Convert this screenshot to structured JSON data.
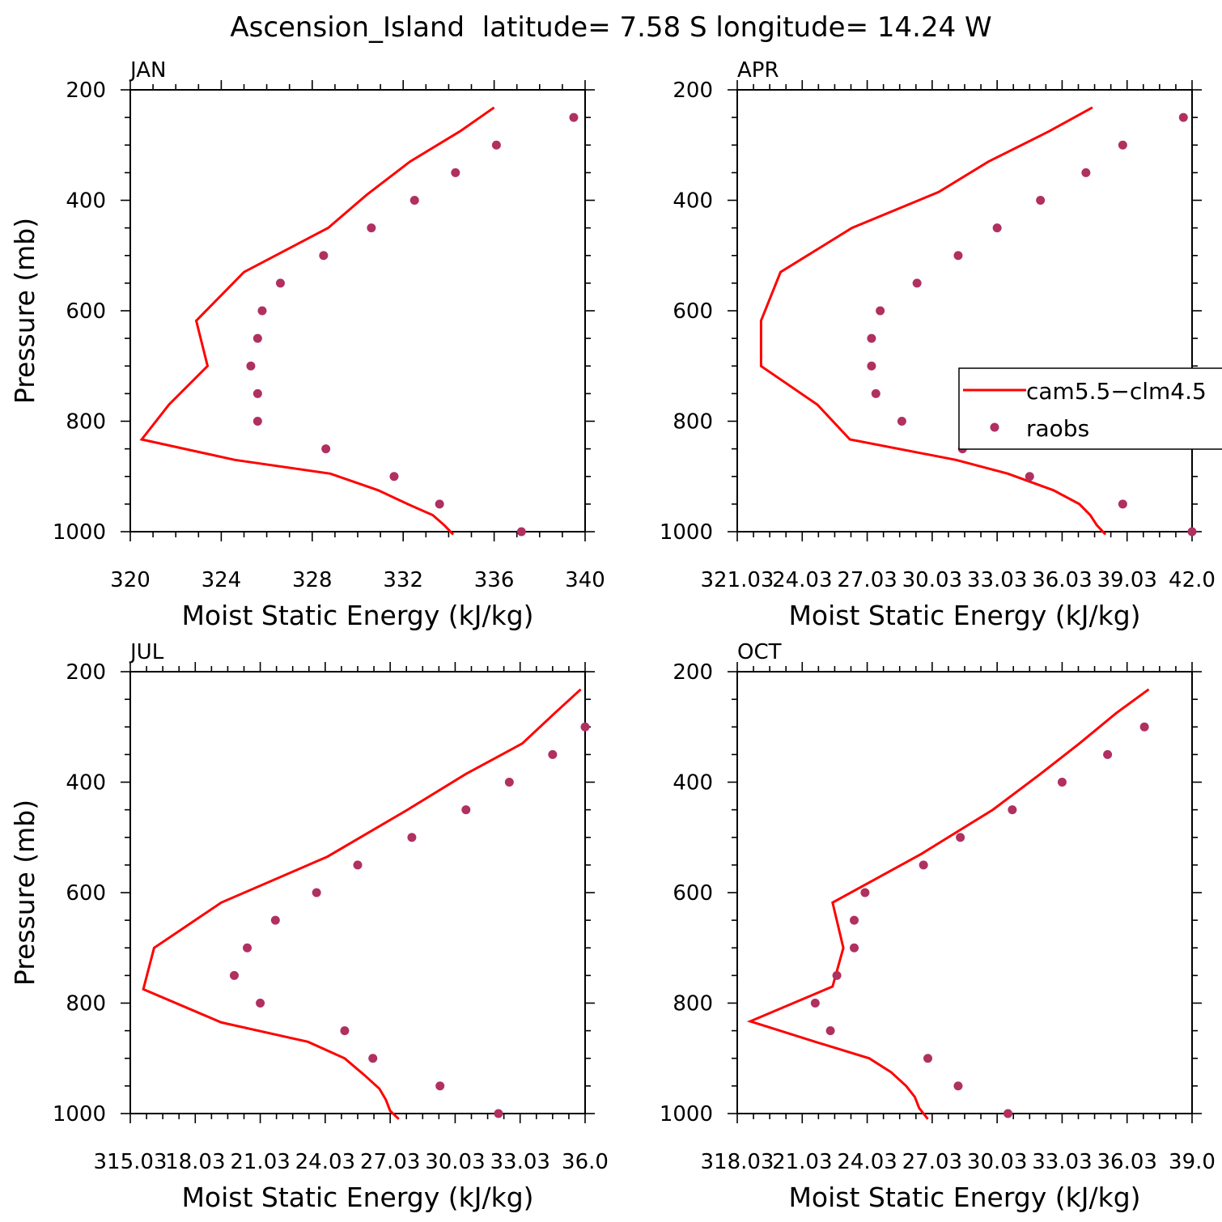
{
  "page": {
    "title": "Ascension_Island  latitude= 7.58 S longitude= 14.24 W"
  },
  "colors": {
    "model_line": "#ff0000",
    "obs_marker": "#b03060"
  },
  "legend": {
    "model_label": "cam5.5−clm4.5",
    "obs_label": "raobs",
    "position": "right-middle of APR panel"
  },
  "chart_data": [
    {
      "type": "line",
      "panel": "JAN",
      "xlabel": "Moist Static Energy (kJ/kg)",
      "ylabel": "Pressure (mb)",
      "xlim": [
        320,
        340
      ],
      "ylim": [
        1000,
        200
      ],
      "xticks": [
        320,
        324,
        328,
        332,
        336,
        340
      ],
      "xtick_labels": [
        "320",
        "324",
        "328",
        "332",
        "336",
        "340"
      ],
      "yticks": [
        200,
        400,
        600,
        800,
        1000
      ],
      "ytick_labels": [
        "200",
        "400",
        "600",
        "800",
        "1000"
      ],
      "series": [
        {
          "kind": "line",
          "x": [
            336.0,
            334.5,
            332.3,
            330.4,
            328.7,
            325.0,
            322.9,
            323.4,
            321.7,
            320.5,
            324.6,
            328.8,
            330.9,
            332.2,
            333.3,
            333.8,
            334.2
          ],
          "y": [
            232,
            275,
            330,
            390,
            450,
            530,
            618,
            700,
            770,
            833,
            870,
            895,
            925,
            950,
            970,
            988,
            1005
          ]
        },
        {
          "kind": "scatter",
          "x": [
            339.5,
            336.1,
            334.3,
            332.5,
            330.6,
            328.5,
            326.6,
            325.8,
            325.6,
            325.3,
            325.6,
            325.6,
            328.6,
            331.6,
            333.6,
            337.2
          ],
          "y": [
            250,
            300,
            350,
            400,
            450,
            500,
            550,
            600,
            650,
            700,
            750,
            800,
            850,
            900,
            950,
            1000
          ]
        }
      ]
    },
    {
      "type": "line",
      "panel": "APR",
      "xlabel": "Moist Static Energy (kJ/kg)",
      "ylabel": "",
      "xlim": [
        321.0,
        342.0
      ],
      "ylim": [
        1000,
        200
      ],
      "xticks": [
        321,
        324,
        327,
        330,
        333,
        336,
        339,
        342
      ],
      "xtick_labels": [
        "321.03",
        "24.03",
        "27.03",
        "30.03",
        "33.03",
        "36.03",
        "39.03",
        "42.0"
      ],
      "yticks": [
        200,
        400,
        600,
        800,
        1000
      ],
      "ytick_labels": [
        "200",
        "400",
        "600",
        "800",
        "1000"
      ],
      "series": [
        {
          "kind": "line",
          "x": [
            337.4,
            335.4,
            332.6,
            330.3,
            326.3,
            323.0,
            322.1,
            322.1,
            324.7,
            326.2,
            331.1,
            333.5,
            335.6,
            336.8,
            337.3,
            337.6,
            338.0
          ],
          "y": [
            232,
            275,
            330,
            385,
            450,
            530,
            618,
            700,
            770,
            833,
            870,
            895,
            925,
            950,
            970,
            988,
            1005
          ]
        },
        {
          "kind": "scatter",
          "x": [
            341.6,
            338.8,
            337.1,
            335.0,
            333.0,
            331.2,
            329.3,
            327.6,
            327.2,
            327.2,
            327.4,
            328.6,
            331.4,
            334.5,
            338.8,
            342.0
          ],
          "y": [
            250,
            300,
            350,
            400,
            450,
            500,
            550,
            600,
            650,
            700,
            750,
            800,
            850,
            900,
            950,
            1000
          ]
        }
      ]
    },
    {
      "type": "line",
      "panel": "JUL",
      "xlabel": "Moist Static Energy (kJ/kg)",
      "ylabel": "Pressure (mb)",
      "xlim": [
        315.0,
        336.0
      ],
      "ylim": [
        1000,
        200
      ],
      "xticks": [
        315,
        318,
        321,
        324,
        327,
        330,
        333,
        336
      ],
      "xtick_labels": [
        "315.03",
        "18.03",
        "21.03",
        "24.03",
        "27.03",
        "30.03",
        "33.03",
        "36.0"
      ],
      "yticks": [
        200,
        400,
        600,
        800,
        1000
      ],
      "ytick_labels": [
        "200",
        "400",
        "600",
        "800",
        "1000"
      ],
      "series": [
        {
          "kind": "line",
          "x": [
            335.8,
            334.6,
            333.1,
            330.5,
            327.8,
            324.1,
            319.2,
            316.1,
            315.6,
            319.2,
            323.2,
            324.9,
            325.8,
            326.5,
            326.8,
            327.0,
            327.4
          ],
          "y": [
            232,
            275,
            330,
            385,
            450,
            535,
            618,
            700,
            775,
            835,
            870,
            900,
            930,
            955,
            975,
            995,
            1010
          ]
        },
        {
          "kind": "scatter",
          "x": [
            336.0,
            334.5,
            332.5,
            330.5,
            328.0,
            325.5,
            323.6,
            321.7,
            320.4,
            319.8,
            321.0,
            324.9,
            326.2,
            329.3,
            332.0
          ],
          "y": [
            300,
            350,
            400,
            450,
            500,
            550,
            600,
            650,
            700,
            750,
            800,
            850,
            900,
            950,
            1000
          ]
        }
      ]
    },
    {
      "type": "line",
      "panel": "OCT",
      "xlabel": "Moist Static Energy (kJ/kg)",
      "ylabel": "",
      "xlim": [
        318.0,
        339.0
      ],
      "ylim": [
        1000,
        200
      ],
      "xticks": [
        318,
        321,
        324,
        327,
        330,
        333,
        336,
        339
      ],
      "xtick_labels": [
        "318.03",
        "21.03",
        "24.03",
        "27.03",
        "30.03",
        "33.03",
        "36.03",
        "39.0"
      ],
      "yticks": [
        200,
        400,
        600,
        800,
        1000
      ],
      "ytick_labels": [
        "200",
        "400",
        "600",
        "800",
        "1000"
      ],
      "series": [
        {
          "kind": "line",
          "x": [
            337.0,
            335.5,
            333.8,
            332.0,
            329.8,
            326.5,
            322.4,
            322.9,
            322.4,
            318.6,
            321.6,
            324.1,
            325.1,
            325.8,
            326.2,
            326.4,
            326.8
          ],
          "y": [
            232,
            275,
            330,
            385,
            450,
            530,
            618,
            700,
            770,
            833,
            870,
            900,
            925,
            950,
            970,
            990,
            1010
          ]
        },
        {
          "kind": "scatter",
          "x": [
            336.8,
            335.1,
            333.0,
            330.7,
            328.3,
            326.6,
            323.9,
            323.4,
            323.4,
            322.6,
            321.6,
            322.3,
            326.8,
            328.2,
            330.5
          ],
          "y": [
            300,
            350,
            400,
            450,
            500,
            550,
            600,
            650,
            700,
            750,
            800,
            850,
            900,
            950,
            1000
          ]
        }
      ]
    }
  ]
}
